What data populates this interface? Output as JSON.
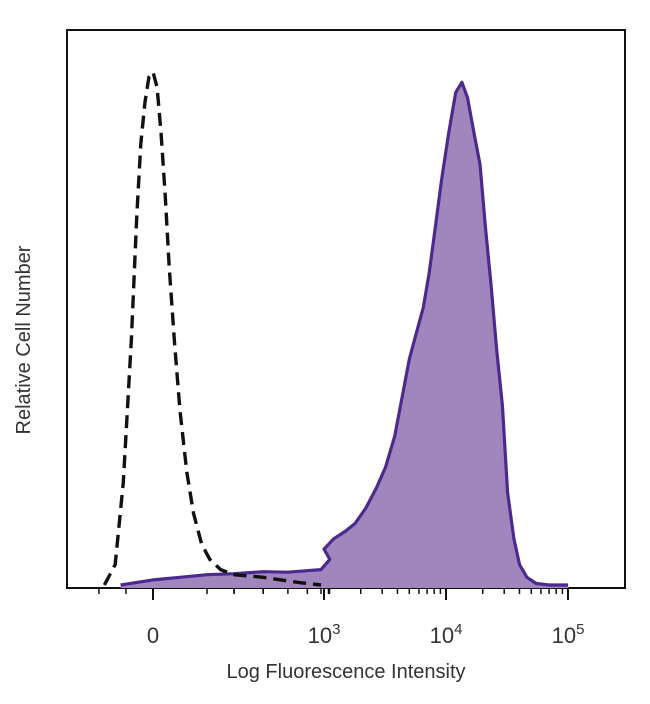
{
  "chart_data": {
    "type": "area",
    "xlabel": "Log Fluorescence Intensity",
    "ylabel": "Relative Cell Number",
    "x_scale": "biexponential",
    "x_tick_labels": [
      {
        "value": 0,
        "base": "0",
        "exp": ""
      },
      {
        "value": 1000,
        "base": "10",
        "exp": "3"
      },
      {
        "value": 10000,
        "base": "10",
        "exp": "4"
      },
      {
        "value": 100000,
        "base": "10",
        "exp": "5"
      }
    ],
    "ylim": [
      0,
      100
    ],
    "colors": {
      "stained_fill": "#a186be",
      "stained_line": "#4b2a8f",
      "control_line": "#111111",
      "axis": "#111111"
    },
    "series": [
      {
        "style": "dashed-outline",
        "color": "#111111",
        "points": [
          [
            -180,
            0
          ],
          [
            -140,
            4
          ],
          [
            -110,
            20
          ],
          [
            -80,
            48
          ],
          [
            -60,
            72
          ],
          [
            -45,
            86
          ],
          [
            -30,
            94
          ],
          [
            -15,
            99
          ],
          [
            0,
            100
          ],
          [
            15,
            97
          ],
          [
            30,
            88
          ],
          [
            45,
            76
          ],
          [
            60,
            62
          ],
          [
            80,
            47
          ],
          [
            100,
            34
          ],
          [
            125,
            22
          ],
          [
            150,
            14
          ],
          [
            180,
            8
          ],
          [
            210,
            5
          ],
          [
            250,
            3
          ],
          [
            300,
            2
          ],
          [
            400,
            1.5
          ],
          [
            550,
            0.5
          ],
          [
            700,
            0
          ]
        ]
      },
      {
        "style": "filled",
        "color": "#a186be",
        "points": [
          [
            -120,
            0
          ],
          [
            -60,
            0.5
          ],
          [
            0,
            1
          ],
          [
            100,
            1.5
          ],
          [
            200,
            2
          ],
          [
            300,
            2.2
          ],
          [
            400,
            2.6
          ],
          [
            500,
            2.5
          ],
          [
            700,
            3
          ],
          [
            850,
            5
          ],
          [
            1000,
            7
          ],
          [
            1200,
            9
          ],
          [
            1500,
            10.5
          ],
          [
            1800,
            12
          ],
          [
            2200,
            15
          ],
          [
            2700,
            19
          ],
          [
            3200,
            23
          ],
          [
            3800,
            29
          ],
          [
            4400,
            37
          ],
          [
            5000,
            44
          ],
          [
            5700,
            49
          ],
          [
            6500,
            54
          ],
          [
            7300,
            61
          ],
          [
            8200,
            70
          ],
          [
            9200,
            79
          ],
          [
            10500,
            88
          ],
          [
            12000,
            96
          ],
          [
            13500,
            98
          ],
          [
            15000,
            95
          ],
          [
            17000,
            88
          ],
          [
            19000,
            82
          ],
          [
            21000,
            70
          ],
          [
            23500,
            58
          ],
          [
            26000,
            46
          ],
          [
            29000,
            35
          ],
          [
            32000,
            18
          ],
          [
            36000,
            9
          ],
          [
            40000,
            4
          ],
          [
            46000,
            1.5
          ],
          [
            55000,
            0.3
          ],
          [
            70000,
            0
          ],
          [
            100000,
            0
          ]
        ]
      }
    ]
  }
}
